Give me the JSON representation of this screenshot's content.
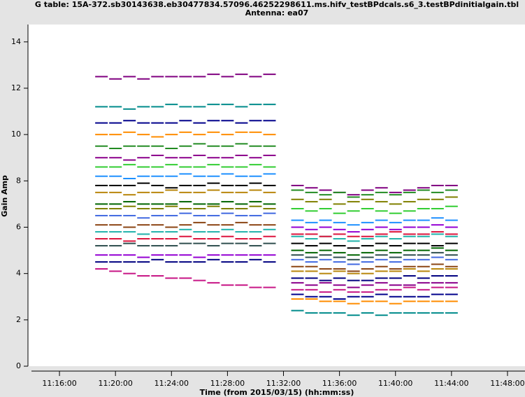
{
  "chart_data": {
    "type": "scatter",
    "title": "G table: 15A-372.sb30143638.eb30477834.57096.46252298611.ms.hifv_testBPdcals.s6_3.testBPdinitialgain.tbl",
    "subtitle": "Antenna: ea07",
    "x_label": "Time (from 2015/03/15) (hh:mm:ss)",
    "y_label": "Gain Amp",
    "xlim": [
      "11:13:45",
      "11:49:15"
    ],
    "xticks": [
      "11:16:00",
      "11:20:00",
      "11:24:00",
      "11:28:00",
      "11:32:00",
      "11:36:00",
      "11:40:00",
      "11:44:00",
      "11:48:00"
    ],
    "ylim": [
      0,
      14.75
    ],
    "yticks": [
      0,
      2,
      4,
      6,
      8,
      10,
      12,
      14
    ],
    "x": [
      "11:19:00",
      "11:20:00",
      "11:21:00",
      "11:22:00",
      "11:23:00",
      "11:24:00",
      "11:25:00",
      "11:26:00",
      "11:27:00",
      "11:28:00",
      "11:29:00",
      "11:30:00",
      "11:31:00",
      "11:33:00",
      "11:34:00",
      "11:35:00",
      "11:36:00",
      "11:37:00",
      "11:38:00",
      "11:39:00",
      "11:40:00",
      "11:41:00",
      "11:42:00",
      "11:43:00",
      "11:44:00"
    ],
    "series": [
      {
        "color": "#800080",
        "values": [
          12.5,
          12.4,
          12.5,
          12.4,
          12.5,
          12.5,
          12.5,
          12.5,
          12.6,
          12.5,
          12.6,
          12.5,
          12.6,
          7.8,
          7.7,
          7.6,
          7.5,
          7.4,
          7.6,
          7.7,
          7.5,
          7.6,
          7.7,
          7.8,
          7.8
        ]
      },
      {
        "color": "#008b8b",
        "values": [
          11.2,
          11.2,
          11.1,
          11.2,
          11.2,
          11.3,
          11.2,
          11.2,
          11.3,
          11.3,
          11.2,
          11.3,
          11.3,
          2.4,
          2.3,
          2.3,
          2.3,
          2.2,
          2.3,
          2.2,
          2.3,
          2.3,
          2.3,
          2.3,
          2.3
        ]
      },
      {
        "color": "#00008b",
        "values": [
          10.5,
          10.5,
          10.6,
          10.5,
          10.5,
          10.5,
          10.6,
          10.5,
          10.6,
          10.6,
          10.5,
          10.6,
          10.6,
          3.1,
          3.0,
          3.0,
          2.9,
          3.0,
          3.0,
          3.1,
          3.0,
          3.0,
          3.0,
          3.1,
          3.1
        ]
      },
      {
        "color": "#ff8c00",
        "values": [
          10.0,
          10.0,
          10.1,
          10.0,
          9.9,
          10.0,
          10.1,
          10.0,
          10.1,
          10.0,
          10.1,
          10.1,
          10.0,
          2.9,
          2.9,
          2.8,
          2.8,
          2.7,
          2.8,
          2.8,
          2.7,
          2.8,
          2.8,
          2.8,
          2.8
        ]
      },
      {
        "color": "#228b22",
        "values": [
          9.5,
          9.4,
          9.5,
          9.5,
          9.5,
          9.4,
          9.5,
          9.6,
          9.5,
          9.5,
          9.6,
          9.5,
          9.5,
          7.6,
          7.5,
          7.4,
          7.5,
          7.3,
          7.4,
          7.5,
          7.4,
          7.5,
          7.6,
          7.5,
          7.6
        ]
      },
      {
        "color": "#8b008b",
        "values": [
          9.0,
          9.0,
          8.9,
          9.0,
          9.1,
          9.0,
          9.0,
          9.1,
          9.0,
          9.0,
          9.1,
          9.0,
          9.1,
          3.6,
          3.5,
          3.6,
          3.5,
          3.4,
          3.5,
          3.6,
          3.5,
          3.5,
          3.6,
          3.6,
          3.6
        ]
      },
      {
        "color": "#32cd32",
        "values": [
          8.6,
          8.6,
          8.7,
          8.6,
          8.6,
          8.7,
          8.6,
          8.6,
          8.7,
          8.6,
          8.6,
          8.7,
          8.6,
          6.8,
          6.7,
          6.8,
          6.6,
          6.7,
          6.8,
          6.7,
          6.6,
          6.7,
          6.8,
          6.8,
          6.9
        ]
      },
      {
        "color": "#1e90ff",
        "values": [
          8.2,
          8.2,
          8.1,
          8.2,
          8.2,
          8.2,
          8.3,
          8.2,
          8.2,
          8.3,
          8.2,
          8.2,
          8.3,
          6.3,
          6.2,
          6.3,
          6.2,
          6.1,
          6.2,
          6.3,
          6.2,
          6.3,
          6.3,
          6.4,
          6.3
        ]
      },
      {
        "color": "#000000",
        "values": [
          7.8,
          7.8,
          7.8,
          7.9,
          7.8,
          7.7,
          7.8,
          7.8,
          7.9,
          7.8,
          7.8,
          7.9,
          7.8,
          5.3,
          5.2,
          5.3,
          5.2,
          5.1,
          5.2,
          5.3,
          5.2,
          5.3,
          5.3,
          5.2,
          5.3
        ]
      },
      {
        "color": "#b8860b",
        "values": [
          7.5,
          7.5,
          7.4,
          7.5,
          7.5,
          7.6,
          7.5,
          7.5,
          7.6,
          7.5,
          7.5,
          7.6,
          7.5,
          4.1,
          4.1,
          4.0,
          4.1,
          4.0,
          4.0,
          4.1,
          4.1,
          4.2,
          4.1,
          4.2,
          4.2
        ]
      },
      {
        "color": "#006400",
        "values": [
          7.0,
          7.0,
          7.1,
          7.0,
          7.0,
          7.0,
          7.1,
          7.0,
          7.0,
          7.1,
          7.0,
          7.1,
          7.0,
          5.0,
          4.9,
          5.0,
          4.9,
          4.8,
          4.9,
          5.0,
          4.9,
          5.0,
          5.0,
          5.1,
          5.0
        ]
      },
      {
        "color": "#4169e1",
        "values": [
          6.5,
          6.5,
          6.5,
          6.4,
          6.5,
          6.5,
          6.6,
          6.5,
          6.5,
          6.6,
          6.5,
          6.5,
          6.6,
          4.6,
          4.5,
          4.6,
          4.5,
          4.4,
          4.5,
          4.6,
          4.5,
          4.6,
          4.6,
          4.7,
          4.6
        ]
      },
      {
        "color": "#8b4513",
        "values": [
          6.1,
          6.1,
          6.0,
          6.1,
          6.1,
          6.0,
          6.1,
          6.2,
          6.1,
          6.1,
          6.2,
          6.1,
          6.1,
          4.3,
          4.3,
          4.2,
          4.2,
          4.1,
          4.2,
          4.3,
          4.2,
          4.3,
          4.3,
          4.4,
          4.3
        ]
      },
      {
        "color": "#20b2aa",
        "values": [
          5.8,
          5.8,
          5.8,
          5.7,
          5.8,
          5.8,
          5.9,
          5.8,
          5.8,
          5.9,
          5.8,
          5.8,
          5.9,
          5.6,
          5.5,
          5.6,
          5.5,
          5.4,
          5.5,
          5.6,
          5.5,
          5.6,
          5.6,
          5.7,
          5.6
        ]
      },
      {
        "color": "#dc143c",
        "values": [
          5.5,
          5.5,
          5.4,
          5.5,
          5.5,
          5.5,
          5.6,
          5.5,
          5.5,
          5.6,
          5.5,
          5.5,
          5.6,
          5.7,
          5.7,
          5.6,
          5.7,
          5.6,
          5.6,
          5.7,
          5.8,
          5.7,
          5.7,
          5.8,
          5.7
        ]
      },
      {
        "color": "#2f4f4f",
        "values": [
          5.2,
          5.2,
          5.3,
          5.2,
          5.2,
          5.2,
          5.3,
          5.3,
          5.2,
          5.3,
          5.3,
          5.2,
          5.3,
          4.8,
          4.7,
          4.8,
          4.7,
          4.6,
          4.7,
          4.8,
          4.7,
          4.8,
          4.8,
          4.9,
          4.8
        ]
      },
      {
        "color": "#9400d3",
        "values": [
          4.8,
          4.8,
          4.8,
          4.7,
          4.8,
          4.8,
          4.8,
          4.7,
          4.8,
          4.8,
          4.8,
          4.8,
          4.8,
          6.0,
          5.9,
          6.0,
          5.9,
          5.8,
          5.9,
          6.0,
          5.9,
          6.0,
          6.0,
          6.1,
          6.0
        ]
      },
      {
        "color": "#000080",
        "values": [
          4.5,
          4.5,
          4.5,
          4.5,
          4.6,
          4.5,
          4.5,
          4.5,
          4.6,
          4.5,
          4.5,
          4.6,
          4.5,
          3.8,
          3.8,
          3.7,
          3.8,
          3.7,
          3.7,
          3.8,
          3.8,
          3.9,
          3.8,
          3.9,
          3.9
        ]
      },
      {
        "color": "#c71585",
        "values": [
          4.2,
          4.1,
          4.0,
          3.9,
          3.9,
          3.8,
          3.8,
          3.7,
          3.6,
          3.5,
          3.5,
          3.4,
          3.4,
          3.3,
          3.3,
          3.2,
          3.3,
          3.2,
          3.2,
          3.3,
          3.3,
          3.4,
          3.3,
          3.4,
          3.4
        ]
      },
      {
        "color": "#808000",
        "values": [
          6.8,
          6.8,
          6.9,
          6.8,
          6.8,
          6.9,
          6.8,
          6.8,
          6.9,
          6.8,
          6.8,
          6.9,
          6.8,
          7.2,
          7.1,
          7.2,
          7.0,
          7.1,
          7.2,
          7.1,
          7.0,
          7.1,
          7.2,
          7.2,
          7.3
        ]
      }
    ]
  }
}
